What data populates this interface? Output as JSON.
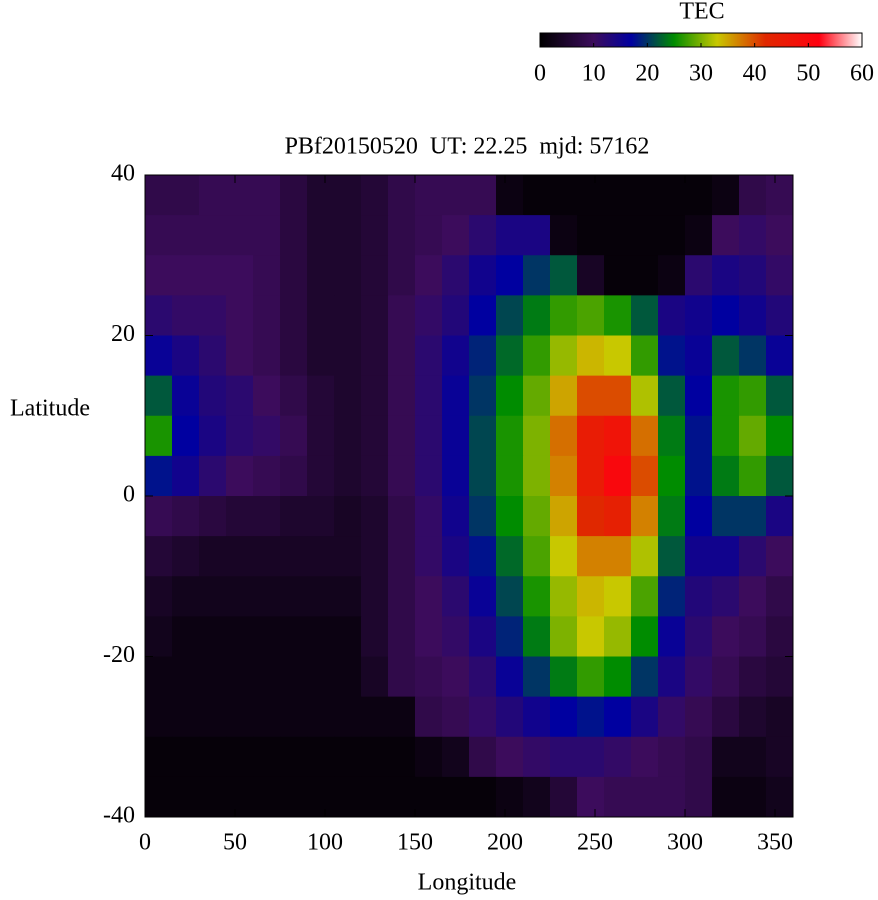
{
  "chart_data": {
    "type": "heatmap",
    "title": "PBf20150520  UT: 22.25  mjd: 57162",
    "x_label": "Longitude",
    "y_label": "Latitude",
    "xlim": [
      0,
      360
    ],
    "ylim": [
      -40,
      40
    ],
    "xticks": [
      0,
      50,
      100,
      150,
      200,
      250,
      300,
      350
    ],
    "yticks": [
      -40,
      -20,
      0,
      20,
      40
    ],
    "x": [
      7.5,
      22.5,
      37.5,
      52.5,
      67.5,
      82.5,
      97.5,
      112.5,
      127.5,
      142.5,
      157.5,
      172.5,
      187.5,
      202.5,
      217.5,
      232.5,
      247.5,
      262.5,
      277.5,
      292.5,
      307.5,
      322.5,
      337.5,
      352.5
    ],
    "y": [
      37.5,
      32.5,
      27.5,
      22.5,
      17.5,
      12.5,
      7.5,
      2.5,
      -2.5,
      -7.5,
      -12.5,
      -17.5,
      -22.5,
      -27.5,
      -32.5,
      -37.5
    ],
    "values": [
      [
        8,
        8,
        9,
        9,
        9,
        7,
        5,
        5,
        6,
        8,
        9,
        9,
        9,
        2,
        1,
        1,
        1,
        1,
        1,
        1,
        1,
        2,
        8,
        9
      ],
      [
        9,
        9,
        9,
        9,
        9,
        7,
        5,
        5,
        6,
        8,
        9,
        10,
        12,
        14,
        14,
        2,
        1,
        1,
        1,
        1,
        2,
        10,
        11,
        10
      ],
      [
        10,
        10,
        10,
        10,
        9,
        7,
        5,
        5,
        6,
        8,
        10,
        12,
        15,
        17,
        20,
        22,
        4,
        1,
        1,
        2,
        12,
        14,
        13,
        11
      ],
      [
        12,
        11,
        11,
        10,
        9,
        7,
        5,
        5,
        6,
        9,
        11,
        13,
        17,
        21,
        24,
        27,
        28,
        26,
        22,
        14,
        15,
        17,
        15,
        13
      ],
      [
        16,
        14,
        12,
        10,
        9,
        7,
        5,
        5,
        6,
        9,
        12,
        15,
        19,
        23,
        27,
        31,
        34,
        33,
        27,
        18,
        16,
        22,
        20,
        16
      ],
      [
        22,
        16,
        13,
        12,
        10,
        8,
        6,
        5,
        6,
        9,
        12,
        16,
        20,
        25,
        29,
        35,
        40,
        40,
        32,
        22,
        17,
        26,
        27,
        22
      ],
      [
        26,
        17,
        14,
        12,
        11,
        9,
        6,
        5,
        6,
        9,
        12,
        16,
        21,
        26,
        30,
        38,
        45,
        47,
        38,
        24,
        18,
        26,
        29,
        25
      ],
      [
        18,
        15,
        12,
        10,
        9,
        8,
        6,
        5,
        6,
        9,
        12,
        16,
        21,
        26,
        30,
        37,
        45,
        50,
        40,
        25,
        18,
        24,
        27,
        22
      ],
      [
        9,
        8,
        7,
        6,
        6,
        5,
        5,
        4,
        5,
        8,
        11,
        15,
        20,
        25,
        29,
        35,
        42,
        44,
        37,
        24,
        17,
        20,
        20,
        14
      ],
      [
        6,
        5,
        4,
        4,
        4,
        4,
        4,
        4,
        5,
        8,
        11,
        14,
        18,
        23,
        28,
        33,
        37,
        37,
        32,
        22,
        15,
        15,
        12,
        10
      ],
      [
        4,
        3,
        3,
        3,
        3,
        3,
        3,
        3,
        5,
        8,
        10,
        12,
        16,
        21,
        26,
        31,
        34,
        33,
        28,
        19,
        13,
        12,
        10,
        8
      ],
      [
        3,
        2,
        2,
        2,
        2,
        2,
        2,
        2,
        5,
        8,
        10,
        11,
        14,
        19,
        24,
        30,
        33,
        31,
        25,
        16,
        12,
        10,
        9,
        7
      ],
      [
        2,
        2,
        2,
        2,
        2,
        2,
        2,
        2,
        4,
        8,
        9,
        10,
        12,
        16,
        20,
        24,
        27,
        25,
        20,
        14,
        11,
        9,
        7,
        6
      ],
      [
        2,
        2,
        2,
        2,
        2,
        2,
        2,
        2,
        2,
        2,
        8,
        9,
        11,
        13,
        15,
        17,
        18,
        17,
        14,
        11,
        9,
        7,
        5,
        4
      ],
      [
        1,
        1,
        1,
        1,
        1,
        1,
        1,
        1,
        1,
        1,
        2,
        3,
        8,
        10,
        11,
        12,
        12,
        11,
        10,
        9,
        8,
        3,
        3,
        4
      ],
      [
        1,
        1,
        1,
        1,
        1,
        1,
        1,
        1,
        1,
        1,
        1,
        1,
        1,
        2,
        3,
        6,
        10,
        9,
        9,
        9,
        8,
        2,
        2,
        3
      ]
    ],
    "colorscale": [
      [
        0,
        "#000000"
      ],
      [
        10,
        "#3c0c5c"
      ],
      [
        17,
        "#0000a0"
      ],
      [
        25,
        "#008c00"
      ],
      [
        33,
        "#c8c800"
      ],
      [
        42,
        "#e02800"
      ],
      [
        52,
        "#ff0010"
      ],
      [
        60,
        "#ffffff"
      ]
    ],
    "colorbar": {
      "label": "TEC",
      "lim": [
        0,
        60
      ],
      "ticks": [
        0,
        10,
        20,
        30,
        40,
        50,
        60
      ]
    }
  }
}
